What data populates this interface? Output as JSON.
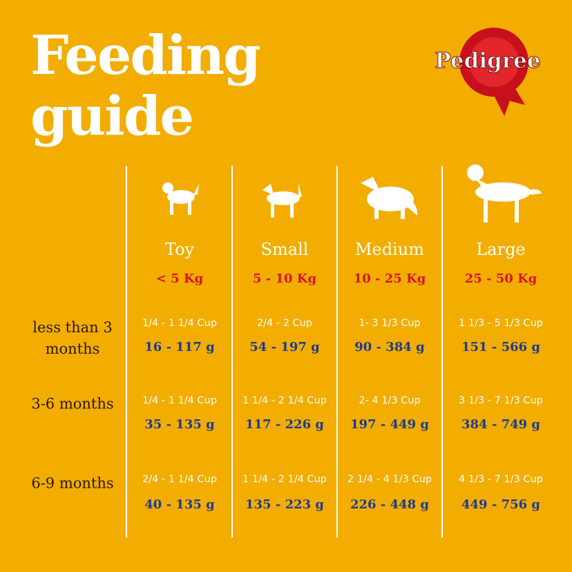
{
  "header": {
    "title_lines": [
      "Feeding",
      "guide"
    ],
    "brand": "Pedigree"
  },
  "table": {
    "columns": [
      {
        "name": "Toy",
        "weight": "< 5 Kg"
      },
      {
        "name": "Small",
        "weight": "5 - 10 Kg"
      },
      {
        "name": "Medium",
        "weight": "10 - 25 Kg"
      },
      {
        "name": "Large",
        "weight": "25 - 50 Kg"
      }
    ],
    "rows": [
      {
        "label": "less than 3 months",
        "cells": [
          {
            "cups": "1/4 - 1 1/4 Cup",
            "grams": "16 - 117 g"
          },
          {
            "cups": "2/4 - 2  Cup",
            "grams": "54 - 197 g"
          },
          {
            "cups": "1- 3 1/3  Cup",
            "grams": "90 - 384 g"
          },
          {
            "cups": "1 1/3 - 5 1/3  Cup",
            "grams": "151 - 566 g"
          }
        ]
      },
      {
        "label": "3-6 months",
        "cells": [
          {
            "cups": "1/4 - 1 1/4 Cup",
            "grams": "35 - 135 g"
          },
          {
            "cups": "1 1/4 - 2 1/4 Cup",
            "grams": "117 - 226 g"
          },
          {
            "cups": "2- 4 1/3 Cup",
            "grams": "197 - 449 g"
          },
          {
            "cups": "3 1/3 - 7 1/3 Cup",
            "grams": "384 - 749 g"
          }
        ]
      },
      {
        "label": "6-9 months",
        "cells": [
          {
            "cups": "2/4 - 1 1/4 Cup",
            "grams": "40 - 135 g"
          },
          {
            "cups": "1 1/4 - 2 1/4 Cup",
            "grams": "135 - 223 g"
          },
          {
            "cups": "2 1/4 - 4 1/3 Cup",
            "grams": "226 - 448 g"
          },
          {
            "cups": "4 1/3 - 7 1/3 Cup",
            "grams": "449 - 756 g"
          }
        ]
      }
    ]
  }
}
